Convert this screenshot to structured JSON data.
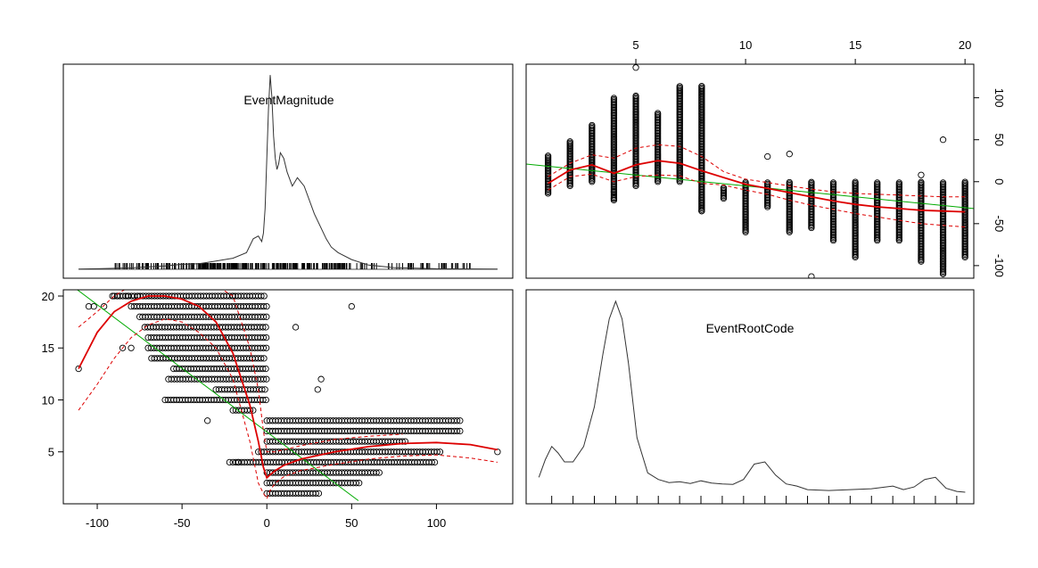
{
  "chart_data": [
    {
      "panel": "EventMagnitude density (diagonal)",
      "type": "area",
      "title": "EventMagnitude",
      "x": [
        -111,
        -100,
        -80,
        -60,
        -50,
        -40,
        -30,
        -20,
        -12,
        -8,
        -5,
        -3,
        -2,
        -1,
        0,
        1,
        2,
        3,
        4,
        5,
        6,
        7,
        8,
        10,
        12,
        15,
        18,
        22,
        28,
        35,
        38,
        42,
        50,
        60,
        75,
        100,
        136
      ],
      "y": [
        0.001,
        0.002,
        0.005,
        0.012,
        0.018,
        0.02,
        0.03,
        0.04,
        0.06,
        0.11,
        0.12,
        0.1,
        0.13,
        0.22,
        0.4,
        0.58,
        0.7,
        0.62,
        0.48,
        0.4,
        0.36,
        0.38,
        0.42,
        0.4,
        0.35,
        0.3,
        0.33,
        0.3,
        0.2,
        0.11,
        0.08,
        0.06,
        0.035,
        0.015,
        0.006,
        0.002,
        0.001
      ],
      "rug": "EventMagnitude observations from -111 to 136",
      "xlim": [
        -120,
        145
      ],
      "ylim": [
        0,
        0.72
      ]
    },
    {
      "panel": "EventMagnitude vs EventRootCode (top-right)",
      "type": "scatter",
      "x_axis_variable": "EventRootCode",
      "y_axis_variable": "EventMagnitude",
      "x_ticks": [
        5,
        10,
        15,
        20
      ],
      "y_ticks": [
        -100,
        -50,
        0,
        50,
        100
      ],
      "xlim": [
        0,
        20.4
      ],
      "ylim": [
        -115,
        140
      ],
      "points_range": [
        {
          "x": 1,
          "ymin": -14,
          "ymax": 32
        },
        {
          "x": 2,
          "ymin": -5,
          "ymax": 48
        },
        {
          "x": 3,
          "ymin": 0,
          "ymax": 68
        },
        {
          "x": 4,
          "ymin": -22,
          "ymax": 100
        },
        {
          "x": 5,
          "ymin": -5,
          "ymax": 103
        },
        {
          "x": 6,
          "ymin": 0,
          "ymax": 82
        },
        {
          "x": 7,
          "ymin": 0,
          "ymax": 114
        },
        {
          "x": 8,
          "ymin": -35,
          "ymax": 114
        },
        {
          "x": 9,
          "ymin": -20,
          "ymax": -7
        },
        {
          "x": 10,
          "ymin": -60,
          "ymax": 0
        },
        {
          "x": 11,
          "ymin": -30,
          "ymax": 0
        },
        {
          "x": 12,
          "ymin": -60,
          "ymax": 0
        },
        {
          "x": 13,
          "ymin": -55,
          "ymax": 0
        },
        {
          "x": 14,
          "ymin": -70,
          "ymax": 0
        },
        {
          "x": 15,
          "ymin": -90,
          "ymax": 0
        },
        {
          "x": 16,
          "ymin": -70,
          "ymax": 0
        },
        {
          "x": 17,
          "ymin": -70,
          "ymax": 0
        },
        {
          "x": 18,
          "ymin": -95,
          "ymax": 0
        },
        {
          "x": 19,
          "ymin": -110,
          "ymax": 0
        },
        {
          "x": 20,
          "ymin": -90,
          "ymax": 0
        }
      ],
      "outliers": [
        [
          5,
          136
        ],
        [
          4,
          -12
        ],
        [
          4,
          -20
        ],
        [
          8,
          -35
        ],
        [
          11,
          30
        ],
        [
          12,
          33
        ],
        [
          13,
          -113
        ],
        [
          19,
          50
        ],
        [
          18,
          8
        ]
      ],
      "linear_fit": {
        "x": [
          0,
          20.4
        ],
        "y": [
          21,
          -32
        ]
      },
      "smooth": {
        "x": [
          1,
          2,
          3,
          4,
          5,
          6,
          7,
          8,
          9,
          10,
          11,
          12,
          13,
          14,
          15,
          16,
          17,
          18,
          19,
          20
        ],
        "y": [
          -2,
          14,
          20,
          10,
          20,
          25,
          22,
          13,
          5,
          -3,
          -8,
          -13,
          -18,
          -23,
          -27,
          -30,
          -32,
          -34,
          -35,
          -36
        ]
      },
      "smooth_upper": {
        "x": [
          1,
          2,
          3,
          4,
          5,
          6,
          7,
          8,
          9,
          10,
          11,
          12,
          13,
          14,
          15,
          16,
          17,
          18,
          19,
          20
        ],
        "y": [
          6,
          22,
          32,
          28,
          40,
          44,
          42,
          30,
          12,
          3,
          -1,
          -5,
          -9,
          -12,
          -14,
          -15,
          -16,
          -17,
          -18,
          -18
        ]
      },
      "smooth_lower": {
        "x": [
          1,
          2,
          3,
          4,
          5,
          6,
          7,
          8,
          9,
          10,
          11,
          12,
          13,
          14,
          15,
          16,
          17,
          18,
          19,
          20
        ],
        "y": [
          -10,
          6,
          9,
          0,
          6,
          8,
          7,
          -2,
          -4,
          -10,
          -15,
          -22,
          -28,
          -33,
          -38,
          -42,
          -46,
          -50,
          -52,
          -54
        ]
      }
    },
    {
      "panel": "EventRootCode vs EventMagnitude (bottom-left)",
      "type": "scatter",
      "x_axis_variable": "EventMagnitude",
      "y_axis_variable": "EventRootCode",
      "x_ticks": [
        -100,
        -50,
        0,
        50,
        100
      ],
      "y_ticks": [
        5,
        10,
        15,
        20
      ],
      "xlim": [
        -120,
        145
      ],
      "ylim": [
        0,
        20.6
      ],
      "points_range": [
        {
          "y": 1,
          "xmin": 0,
          "xmax": 32
        },
        {
          "y": 2,
          "xmin": 0,
          "xmax": 55
        },
        {
          "y": 3,
          "xmin": 0,
          "xmax": 68
        },
        {
          "y": 4,
          "xmin": -20,
          "xmax": 100
        },
        {
          "y": 5,
          "xmin": -5,
          "xmax": 103
        },
        {
          "y": 6,
          "xmin": 0,
          "xmax": 82
        },
        {
          "y": 7,
          "xmin": 0,
          "xmax": 114
        },
        {
          "y": 8,
          "xmin": 0,
          "xmax": 114
        },
        {
          "y": 9,
          "xmin": -20,
          "xmax": -7
        },
        {
          "y": 10,
          "xmin": -60,
          "xmax": 0
        },
        {
          "y": 11,
          "xmin": -30,
          "xmax": 0
        },
        {
          "y": 12,
          "xmin": -58,
          "xmax": 0
        },
        {
          "y": 13,
          "xmin": -55,
          "xmax": 0
        },
        {
          "y": 14,
          "xmin": -68,
          "xmax": 0
        },
        {
          "y": 15,
          "xmin": -70,
          "xmax": 0
        },
        {
          "y": 16,
          "xmin": -70,
          "xmax": 0
        },
        {
          "y": 17,
          "xmin": -72,
          "xmax": 0
        },
        {
          "y": 18,
          "xmin": -75,
          "xmax": 0
        },
        {
          "y": 19,
          "xmin": -80,
          "xmax": 0
        },
        {
          "y": 20,
          "xmin": -90,
          "xmax": 0
        }
      ],
      "outliers": [
        [
          -111,
          13
        ],
        [
          -105,
          19
        ],
        [
          -102,
          19
        ],
        [
          -96,
          19
        ],
        [
          -85,
          15
        ],
        [
          -80,
          15
        ],
        [
          -35,
          8
        ],
        [
          -22,
          4
        ],
        [
          -17,
          4
        ],
        [
          17,
          17
        ],
        [
          30,
          11
        ],
        [
          32,
          12
        ],
        [
          50,
          19
        ],
        [
          136,
          5
        ],
        [
          -91,
          20
        ],
        [
          -88,
          20
        ],
        [
          -82,
          20
        ],
        [
          -76,
          20
        ],
        [
          -20,
          20
        ]
      ],
      "linear_fit": {
        "x": [
          -115,
          54
        ],
        "y": [
          21,
          0.3
        ]
      },
      "smooth": {
        "x": [
          -111,
          -100,
          -90,
          -80,
          -70,
          -60,
          -50,
          -40,
          -30,
          -20,
          -10,
          -5,
          -2,
          0,
          2,
          5,
          10,
          20,
          40,
          60,
          80,
          100,
          120,
          136
        ],
        "y": [
          13,
          16.5,
          18.5,
          19.5,
          20,
          20,
          19.7,
          19,
          17.5,
          14.5,
          9.5,
          6,
          3.5,
          2.5,
          2.8,
          3.2,
          3.7,
          4.3,
          5,
          5.5,
          5.8,
          5.9,
          5.7,
          5.2
        ]
      },
      "smooth_upper": {
        "x": [
          -111,
          -100,
          -90,
          -80,
          -70,
          -60,
          -50,
          -40,
          -30,
          -20,
          -10,
          -5,
          -2,
          0,
          5,
          10,
          20,
          40,
          60,
          80
        ],
        "y": [
          17,
          18.5,
          20,
          21,
          21,
          21,
          21,
          21,
          21,
          20,
          15,
          11,
          7,
          5,
          5,
          5.2,
          5.6,
          6.2,
          6.5,
          6.7
        ]
      },
      "smooth_lower": {
        "x": [
          -111,
          -100,
          -90,
          -80,
          -70,
          -60,
          -50,
          -40,
          -30,
          -20,
          -10,
          -5,
          -2,
          0,
          2,
          5,
          10,
          20,
          40,
          60,
          80,
          100,
          120,
          136
        ],
        "y": [
          9,
          11.5,
          14,
          16,
          17.2,
          17.8,
          17.5,
          16.5,
          15,
          12,
          6,
          2,
          1,
          0.5,
          1.3,
          2,
          2.6,
          3.2,
          3.8,
          4.3,
          4.6,
          4.7,
          4.4,
          4
        ]
      }
    },
    {
      "panel": "EventRootCode density (diagonal)",
      "type": "area",
      "title": "EventRootCode",
      "x": [
        0.4,
        0.7,
        1,
        1.3,
        1.6,
        2,
        2.5,
        3,
        3.4,
        3.7,
        4,
        4.3,
        4.6,
        5,
        5.5,
        6,
        6.5,
        7,
        7.5,
        8,
        8.5,
        9,
        9.5,
        10,
        10.5,
        11,
        11.5,
        12,
        12.5,
        13,
        14,
        15,
        16,
        17,
        17.5,
        18,
        18.5,
        19,
        19.5,
        20,
        20.4
      ],
      "y": [
        0.04,
        0.08,
        0.11,
        0.095,
        0.075,
        0.075,
        0.11,
        0.2,
        0.32,
        0.4,
        0.44,
        0.4,
        0.3,
        0.13,
        0.05,
        0.035,
        0.028,
        0.03,
        0.026,
        0.032,
        0.027,
        0.025,
        0.024,
        0.035,
        0.07,
        0.075,
        0.045,
        0.025,
        0.02,
        0.012,
        0.01,
        0.012,
        0.014,
        0.02,
        0.012,
        0.018,
        0.035,
        0.04,
        0.015,
        0.008,
        0.006
      ],
      "rug_ticks": [
        1,
        2,
        3,
        4,
        5,
        6,
        7,
        8,
        9,
        10,
        11,
        12,
        13,
        14,
        15,
        16,
        17,
        18,
        19,
        20
      ],
      "xlim": [
        -0.2,
        20.8
      ],
      "ylim": [
        0,
        0.45
      ]
    }
  ],
  "colors": {
    "points": "#000000",
    "linear_fit": "#00aa00",
    "smooth": "#dd0000",
    "density": "#333333"
  }
}
